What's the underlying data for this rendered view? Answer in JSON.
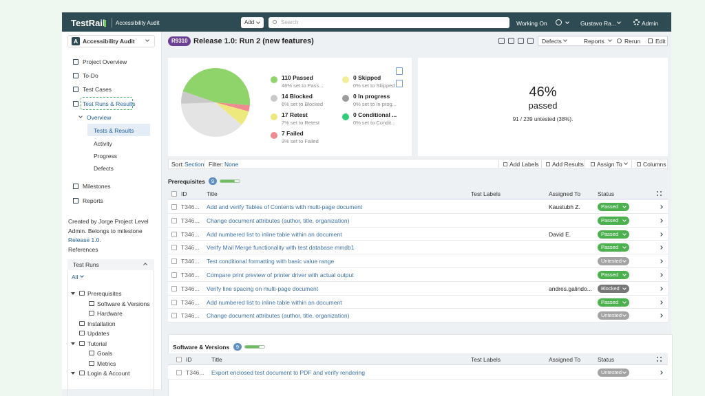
{
  "topbar": {
    "logo": "TestRail",
    "project": "Accessibility Audit",
    "add": "Add",
    "search": "Search",
    "working_on": "Working On",
    "user": "Gustavo Ra...",
    "admin": "Admin"
  },
  "sidebar": {
    "project_initial": "A",
    "project": "Accessibility Audit",
    "nav": [
      "Project Overview",
      "To-Do",
      "Test Cases",
      "Test Runs & Results"
    ],
    "sub": "Overview",
    "subnav": [
      "Tests & Results",
      "Activity",
      "Progress",
      "Defects"
    ],
    "nav2": [
      "Milestones",
      "Reports"
    ],
    "created": [
      "Created by Jorge Project Level",
      "Admin. Belongs to milestone"
    ],
    "milestone": "Release 1.0.",
    "references": "References",
    "runs_title": "Test Runs",
    "filter": "All",
    "tree": [
      {
        "label": "Prerequisites",
        "level": 0
      },
      {
        "label": "Software & Versions",
        "level": 1
      },
      {
        "label": "Hardware",
        "level": 1
      },
      {
        "label": "Installation",
        "level": 0
      },
      {
        "label": "Updates",
        "level": 0
      },
      {
        "label": "Tutorial",
        "level": 0
      },
      {
        "label": "Goals",
        "level": 1
      },
      {
        "label": "Metrics",
        "level": 1
      },
      {
        "label": "Login & Account",
        "level": 0
      }
    ]
  },
  "header": {
    "badge": "R9310",
    "title": "Release 1.0: Run 2 (new features)",
    "actions": [
      "Defects",
      "Reports",
      "Rerun",
      "Edit"
    ]
  },
  "stats": [
    {
      "label": "110 Passed",
      "sub": "46% set to Pass...",
      "count": 110,
      "color": "#8fd46b"
    },
    {
      "label": "14 Blocked",
      "sub": "6% set to Blocked",
      "count": 14,
      "color": "#c9c9c9"
    },
    {
      "label": "17 Retest",
      "sub": "7% set to Retest",
      "count": 17,
      "color": "#eee97c"
    },
    {
      "label": "7 Failed",
      "sub": "3% set to Failed",
      "count": 7,
      "color": "#ef8a90"
    },
    {
      "label": "0 Skipped",
      "sub": "0% set to Skipped",
      "count": 0,
      "color": "#f2ee96"
    },
    {
      "label": "0 In progress",
      "sub": "0% set to In prog...",
      "count": 0,
      "color": "#9b9b9b"
    },
    {
      "label": "0 Conditional ...",
      "sub": "0% set to Condit...",
      "count": 0,
      "color": "#2fcc7a"
    }
  ],
  "untested": {
    "count": 91,
    "color": "#e4e4e4"
  },
  "summary": {
    "percent": "46%",
    "word": "passed",
    "untested": "91 / 239 untested (38%)."
  },
  "toolbar": {
    "sort": "Sort:",
    "sort_value": "Section",
    "filter": "Filter:",
    "filter_value": "None",
    "actions": [
      "Add Labels",
      "Add Results",
      "Assign To",
      "Columns"
    ]
  },
  "columns": [
    "ID",
    "Title",
    "Test Labels",
    "Assigned To",
    "Status"
  ],
  "sections": [
    {
      "name": "Prerequisites",
      "count": "9",
      "rows": [
        {
          "id": "T346...",
          "title": "Add and verify Tables of Contents with multi-page document",
          "assigned": "Kaustubh Z.",
          "status": "Passed"
        },
        {
          "id": "T346...",
          "title": "Change document attributes (author, title, organization)",
          "status": "Passed"
        },
        {
          "id": "T346...",
          "title": "Add numbered list to inline table within an document",
          "assigned": "David E.",
          "status": "Passed"
        },
        {
          "id": "T346...",
          "title": "Verify Mail Merge functionality with test database mmdb1",
          "status": "Passed"
        },
        {
          "id": "T346...",
          "title": "Test conditional formatting with basic value range",
          "status": "Untested"
        },
        {
          "id": "T346...",
          "title": "Compare print preview of printer driver with actual output",
          "status": "Passed"
        },
        {
          "id": "T346...",
          "title": "Verify line spacing on multi-page document",
          "assigned": "andres.galindo...",
          "status": "Blocked"
        },
        {
          "id": "T346...",
          "title": "Add numbered list to inline table within an document",
          "status": "Passed"
        },
        {
          "id": "T346...",
          "title": "Change document attributes (author, title, organization)",
          "status": "Untested"
        }
      ]
    },
    {
      "name": "Software & Versions",
      "count": "9",
      "rows": [
        {
          "id": "T346...",
          "title": "Export enclosed test document to PDF and verify rendering",
          "status": "Untested"
        }
      ]
    }
  ],
  "status_colors": {
    "Passed": "#4cb04f",
    "Untested": "#a3a3a3",
    "Blocked": "#777777"
  }
}
